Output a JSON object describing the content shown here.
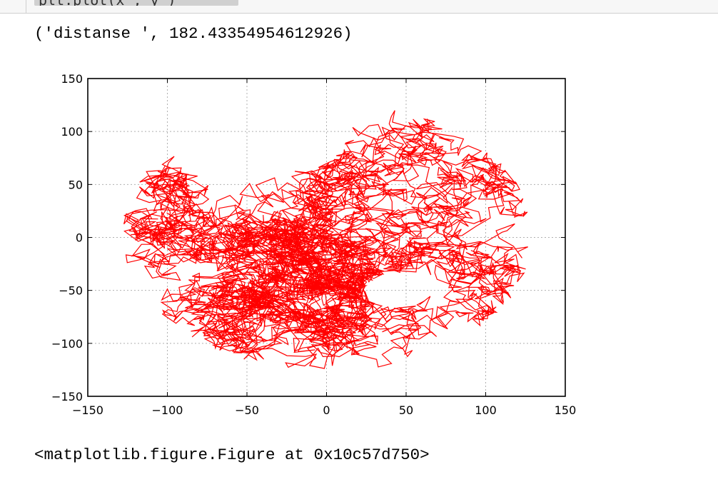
{
  "input_cell": {
    "code": "    plt.plot(x_, y_)"
  },
  "output": {
    "print_text": "('distanse ', 182.43354954612926)",
    "figure_repr": "<matplotlib.figure.Figure at 0x10c57d750>"
  },
  "chart_data": {
    "type": "line",
    "title": "",
    "xlabel": "",
    "ylabel": "",
    "xlim": [
      -150,
      150
    ],
    "ylim": [
      -150,
      150
    ],
    "xticks": [
      -150,
      -100,
      -50,
      0,
      50,
      100,
      150
    ],
    "yticks": [
      -150,
      -100,
      -50,
      0,
      50,
      100,
      150
    ],
    "xtick_labels": [
      "−150",
      "−100",
      "−50",
      "0",
      "50",
      "100",
      "150"
    ],
    "ytick_labels": [
      "−150",
      "−100",
      "−50",
      "0",
      "50",
      "100",
      "150"
    ],
    "grid": true,
    "line_color": "#ff0000",
    "series": [
      {
        "shape": "random walk confined to a disc",
        "center": [
          0,
          0
        ],
        "x_extent": [
          -129,
          130
        ],
        "y_extent": [
          -127,
          129
        ],
        "dense_regions": [
          [
            -95,
            -30
          ],
          [
            75,
            15
          ],
          [
            -45,
            -60
          ],
          [
            25,
            -60
          ]
        ],
        "sparse_regions": [
          [
            -15,
            80
          ],
          [
            45,
            -50
          ]
        ]
      }
    ]
  },
  "colors": {
    "line": "#ff0000",
    "grid": "#b0b0b0",
    "axes": "#000000",
    "input_bg": "#f7f7f7"
  }
}
